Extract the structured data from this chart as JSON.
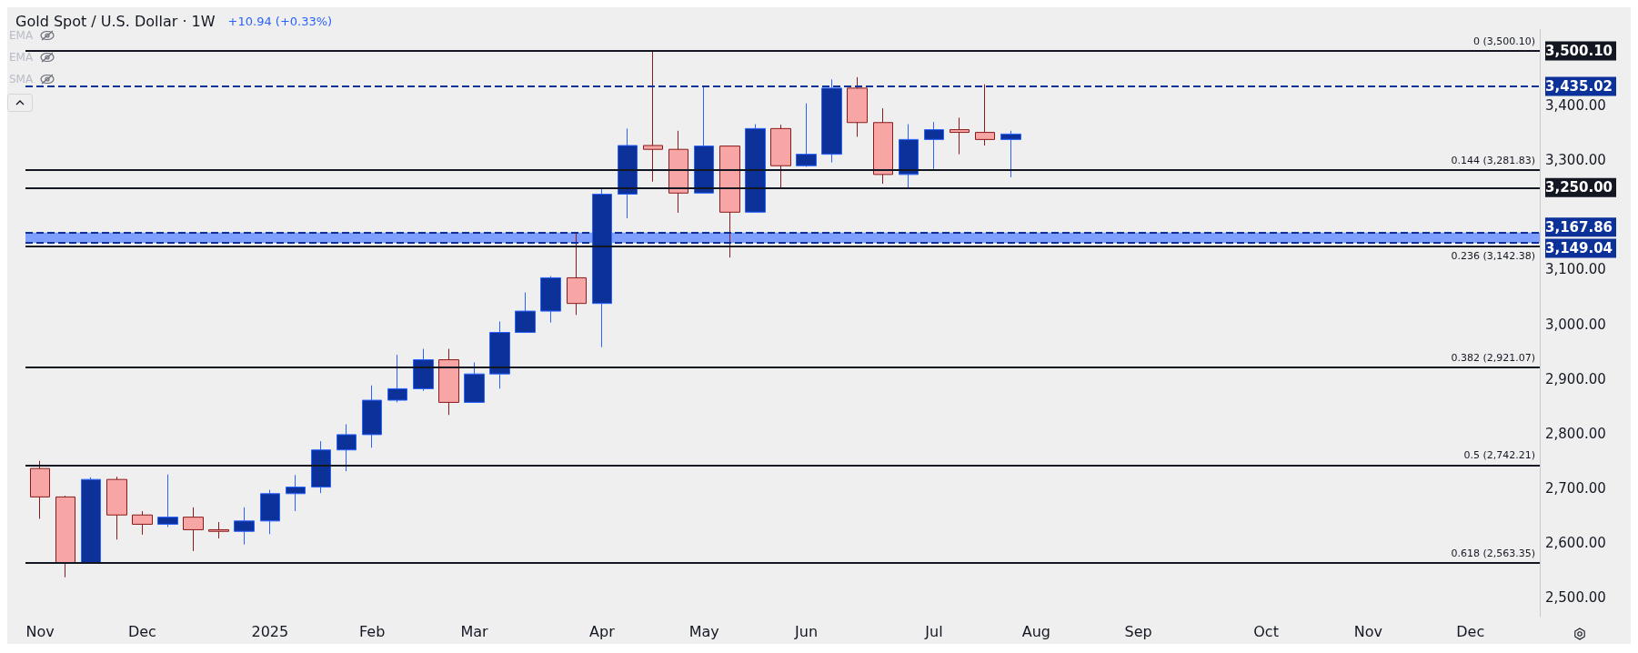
{
  "chart_data": {
    "type": "candlestick",
    "title": "Gold Spot / U.S. Dollar · 1W",
    "subtitle": "+10.94 (+0.33%)",
    "annotations": [
      "EMA",
      "EMA",
      "SMA"
    ],
    "colors": [
      "#f7a5a5",
      "#f7a5a5",
      "#0c3199",
      "#f7a5a5",
      "#f7a5a5",
      "#0c3199",
      "#f7a5a5",
      "#f7a5a5",
      "#0c3199",
      "#0c3199",
      "#0c3199",
      "#0c3199",
      "#0c3199",
      "#0c3199",
      "#0c3199",
      "#0c3199",
      "#f7a5a5",
      "#0c3199",
      "#0c3199",
      "#0c3199",
      "#0c3199",
      "#f7a5a5",
      "#0c3199",
      "#0c3199",
      "#f7a5a5",
      "#f7a5a5",
      "#0c3199",
      "#f7a5a5",
      "#0c3199",
      "#f7a5a5",
      "#0c3199",
      "#0c3199",
      "#f7a5a5",
      "#f7a5a5",
      "#0c3199",
      "#0c3199",
      "#f7a5a5",
      "#f7a5a5",
      "#0c3199"
    ],
    "x": [
      "2024-11-04",
      "2024-11-11",
      "2024-11-18",
      "2024-11-25",
      "2024-12-02",
      "2024-12-09",
      "2024-12-16",
      "2024-12-23",
      "2024-12-30",
      "2025-01-06",
      "2025-01-13",
      "2025-01-20",
      "2025-01-27",
      "2025-02-03",
      "2025-02-10",
      "2025-02-17",
      "2025-02-24",
      "2025-03-03",
      "2025-03-10",
      "2025-03-17",
      "2025-03-24",
      "2025-03-31",
      "2025-04-07",
      "2025-04-14",
      "2025-04-21",
      "2025-04-28",
      "2025-05-05",
      "2025-05-12",
      "2025-05-19",
      "2025-05-26",
      "2025-06-02",
      "2025-06-09",
      "2025-06-16",
      "2025-06-23",
      "2025-06-30",
      "2025-07-07",
      "2025-07-14",
      "2025-07-21",
      "2025-07-28"
    ],
    "ohlc": [
      [
        2736,
        2750,
        2644,
        2684
      ],
      [
        2684,
        2686,
        2537,
        2563
      ],
      [
        2563,
        2720,
        2563,
        2716
      ],
      [
        2716,
        2721,
        2606,
        2651
      ],
      [
        2651,
        2658,
        2615,
        2634
      ],
      [
        2634,
        2725,
        2629,
        2647
      ],
      [
        2647,
        2665,
        2585,
        2624
      ],
      [
        2624,
        2638,
        2608,
        2621
      ],
      [
        2621,
        2665,
        2597,
        2640
      ],
      [
        2640,
        2697,
        2616,
        2690
      ],
      [
        2690,
        2724,
        2658,
        2702
      ],
      [
        2702,
        2786,
        2691,
        2770
      ],
      [
        2770,
        2817,
        2731,
        2798
      ],
      [
        2798,
        2888,
        2774,
        2861
      ],
      [
        2861,
        2944,
        2857,
        2882
      ],
      [
        2882,
        2955,
        2878,
        2935
      ],
      [
        2935,
        2955,
        2834,
        2857
      ],
      [
        2857,
        2930,
        2857,
        2909
      ],
      [
        2909,
        3005,
        2882,
        2985
      ],
      [
        2985,
        3058,
        2984,
        3024
      ],
      [
        3024,
        3088,
        3003,
        3085
      ],
      [
        3085,
        3167.86,
        3017,
        3038
      ],
      [
        3038,
        3247,
        2958,
        3238
      ],
      [
        3238,
        3358,
        3194,
        3327
      ],
      [
        3327,
        3500.1,
        3261,
        3320
      ],
      [
        3320,
        3354,
        3204,
        3240
      ],
      [
        3240,
        3435.02,
        3240,
        3326
      ],
      [
        3326,
        3326,
        3122,
        3205
      ],
      [
        3205,
        3366,
        3204,
        3358
      ],
      [
        3358,
        3365,
        3248,
        3290
      ],
      [
        3290,
        3404,
        3288,
        3311
      ],
      [
        3311,
        3448,
        3296,
        3432
      ],
      [
        3432,
        3452,
        3343,
        3369
      ],
      [
        3369,
        3395,
        3257,
        3274
      ],
      [
        3274,
        3366,
        3250,
        3338
      ],
      [
        3338,
        3370,
        3284,
        3356
      ],
      [
        3356,
        3378,
        3311,
        3351
      ],
      [
        3351,
        3439,
        3327,
        3338
      ],
      [
        3338,
        3354,
        3269,
        3348
      ]
    ],
    "xlim": [
      "2024-10-31",
      "2025-12-20"
    ],
    "xticks": [
      {
        "value": "2024-11-04",
        "label": "Nov"
      },
      {
        "value": "2024-12-02",
        "label": "Dec"
      },
      {
        "value": "2025-01-06",
        "label": "2025"
      },
      {
        "value": "2025-02-03",
        "label": "Feb"
      },
      {
        "value": "2025-03-03",
        "label": "Mar"
      },
      {
        "value": "2025-04-07",
        "label": "Apr"
      },
      {
        "value": "2025-05-05",
        "label": "May"
      },
      {
        "value": "2025-06-02",
        "label": "Jun"
      },
      {
        "value": "2025-07-07",
        "label": "Jul"
      },
      {
        "value": "2025-08-04",
        "label": "Aug"
      },
      {
        "value": "2025-09-01",
        "label": "Sep"
      },
      {
        "value": "2025-10-06",
        "label": "Oct"
      },
      {
        "value": "2025-11-03",
        "label": "Nov"
      },
      {
        "value": "2025-12-01",
        "label": "Dec"
      }
    ],
    "ylim": [
      2465,
      3540
    ],
    "yticks": [
      {
        "value": 2500,
        "label": "2,500.00"
      },
      {
        "value": 2600,
        "label": "2,600.00"
      },
      {
        "value": 2700,
        "label": "2,700.00"
      },
      {
        "value": 2800,
        "label": "2,800.00"
      },
      {
        "value": 2900,
        "label": "2,900.00"
      },
      {
        "value": 3000,
        "label": "3,000.00"
      },
      {
        "value": 3100,
        "label": "3,100.00"
      },
      {
        "value": 3149.04,
        "label": "3,149.04"
      },
      {
        "value": 3167.86,
        "label": "3,167.86"
      },
      {
        "value": 3250,
        "label": "3,250.00"
      },
      {
        "value": 3300,
        "label": "3,300.00"
      },
      {
        "value": 3400,
        "label": "3,400.00"
      },
      {
        "value": 3435.02,
        "label": "3,435.02"
      },
      {
        "value": 3500.1,
        "label": "3,500.10"
      }
    ],
    "ref_lines": [
      {
        "axis": "y",
        "value": 3500.1,
        "label": "0 (3,500.10)",
        "color": "#131722"
      },
      {
        "axis": "y",
        "value": 3435.02,
        "color": "#0c3199",
        "line_style": "dashed"
      },
      {
        "axis": "y",
        "value": 3281.83,
        "label": "0.144 (3,281.83)",
        "color": "#131722"
      },
      {
        "axis": "y",
        "value": 3250,
        "color": "#131722"
      },
      {
        "axis": "y",
        "value": 3167.86,
        "color": "#0c3199",
        "line_style": "dashed"
      },
      {
        "axis": "y",
        "value": 3149.04,
        "color": "#0c3199",
        "line_style": "dashed"
      },
      {
        "axis": "y",
        "value": 3142.38,
        "label": "0.236 (3,142.38)",
        "color": "#131722"
      },
      {
        "axis": "y",
        "value": 2921.07,
        "label": "0.382 (2,921.07)",
        "color": "#131722"
      },
      {
        "axis": "y",
        "value": 2742.21,
        "label": "0.5 (2,742.21)",
        "color": "#131722"
      },
      {
        "axis": "y",
        "value": 2563.35,
        "label": "0.618 (2,563.35)",
        "color": "#131722"
      }
    ],
    "bands": [
      {
        "axis": "y",
        "from": 3149.04,
        "to": 3167.86,
        "color": "#6b8fff"
      }
    ],
    "grid": false
  }
}
